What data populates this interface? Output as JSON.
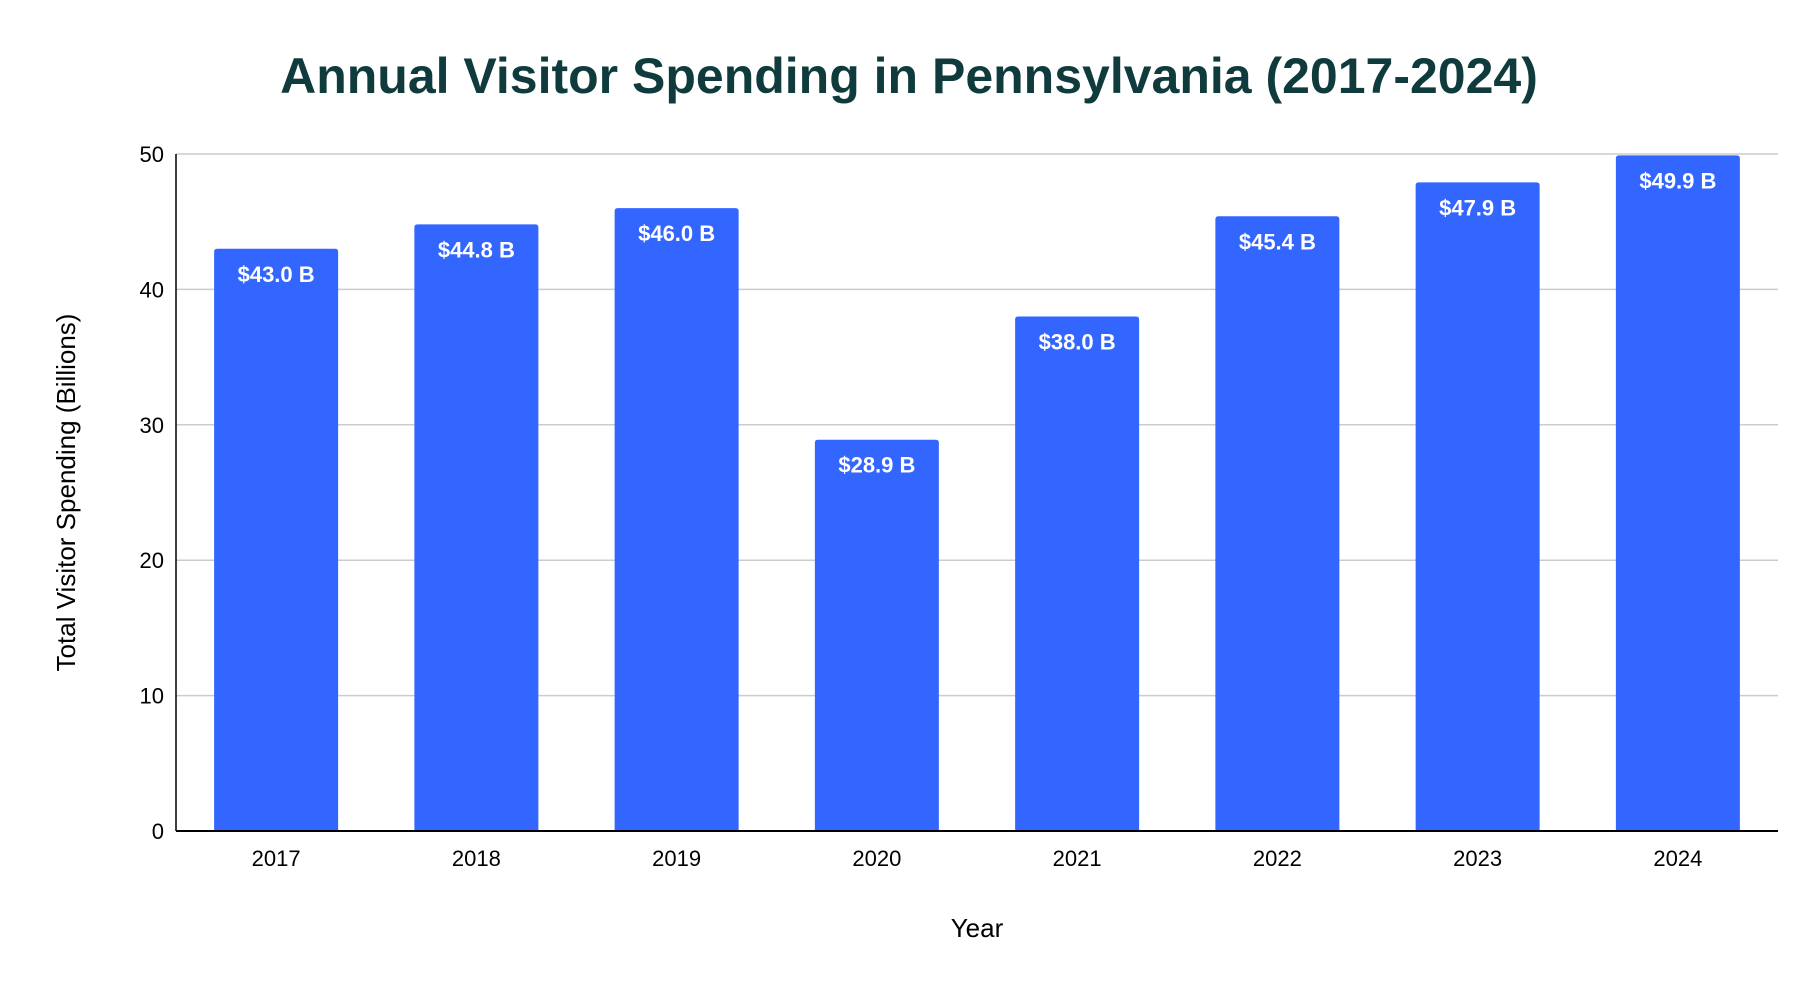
{
  "chart_data": {
    "type": "bar",
    "title": "Annual Visitor Spending in Pennsylvania (2017-2024)",
    "xlabel": "Year",
    "ylabel": "Total Visitor Spending (Billions)",
    "categories": [
      "2017",
      "2018",
      "2019",
      "2020",
      "2021",
      "2022",
      "2023",
      "2024"
    ],
    "values": [
      43.0,
      44.8,
      46.0,
      28.9,
      38.0,
      45.4,
      47.9,
      49.9
    ],
    "data_labels": [
      "$43.0 B",
      "$44.8 B",
      "$46.0 B",
      "$28.9 B",
      "$38.0 B",
      "$45.4 B",
      "$47.9 B",
      "$49.9 B"
    ],
    "yticks": [
      "0",
      "10",
      "20",
      "30",
      "40",
      "50"
    ],
    "ylim": [
      0,
      50
    ],
    "grid": true,
    "legend": "none",
    "colors": {
      "bar": "#3366ff",
      "title": "#0f3b3d",
      "grid": "#cccccc",
      "axis": "#000000",
      "label": "#ffffff"
    }
  }
}
